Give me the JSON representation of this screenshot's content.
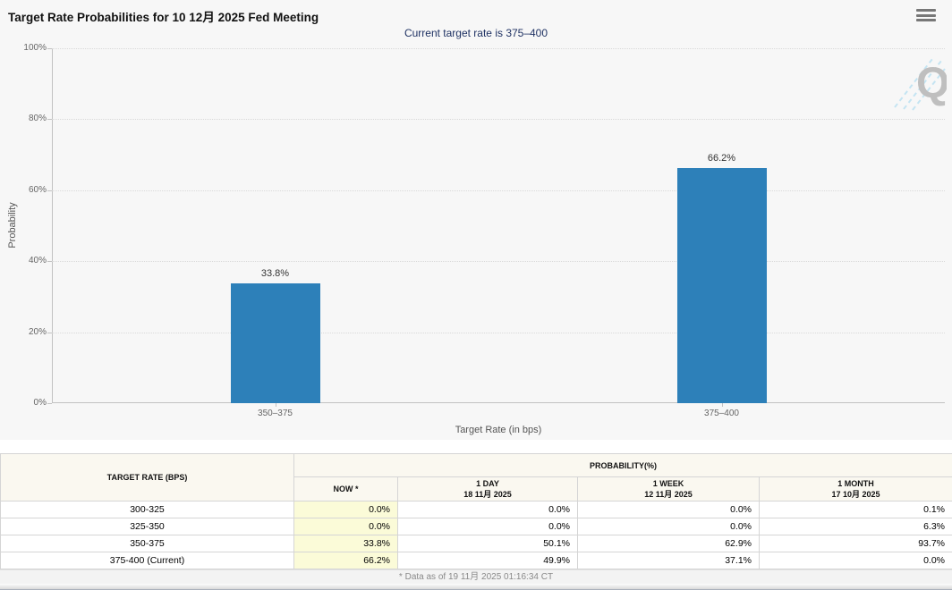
{
  "header": {
    "title": "Target Rate Probabilities for 10 12月 2025 Fed Meeting"
  },
  "subtitle": "Current target rate is 375–400",
  "chart_data": {
    "type": "bar",
    "categories": [
      "350–375",
      "375–400"
    ],
    "values": [
      33.8,
      66.2
    ],
    "value_labels": [
      "33.8%",
      "66.2%"
    ],
    "xlabel": "Target Rate (in bps)",
    "ylabel": "Probability",
    "ylim": [
      0,
      100
    ],
    "yticks": [
      0,
      20,
      40,
      60,
      80,
      100
    ],
    "ytick_labels": [
      "0%",
      "20%",
      "40%",
      "60%",
      "80%",
      "100%"
    ],
    "bar_color": "#2d80b9",
    "grid": "horizontal-dotted",
    "legend": "none"
  },
  "watermark": {
    "letter": "Q"
  },
  "table": {
    "rate_header": "TARGET RATE (BPS)",
    "group_header": "PROBABILITY(%)",
    "col_headers": [
      {
        "label": "NOW *",
        "sub": ""
      },
      {
        "label": "1 DAY",
        "sub": "18 11月 2025"
      },
      {
        "label": "1 WEEK",
        "sub": "12 11月 2025"
      },
      {
        "label": "1 MONTH",
        "sub": "17 10月 2025"
      }
    ],
    "rows": [
      {
        "rate": "300-325",
        "now": "0.0%",
        "day": "0.0%",
        "week": "0.0%",
        "month": "0.1%"
      },
      {
        "rate": "325-350",
        "now": "0.0%",
        "day": "0.0%",
        "week": "0.0%",
        "month": "6.3%"
      },
      {
        "rate": "350-375",
        "now": "33.8%",
        "day": "50.1%",
        "week": "62.9%",
        "month": "93.7%"
      },
      {
        "rate": "375-400 (Current)",
        "now": "66.2%",
        "day": "49.9%",
        "week": "37.1%",
        "month": "0.0%"
      }
    ]
  },
  "footer": {
    "note": "* Data as of 19 11月 2025 01:16:34 CT"
  }
}
